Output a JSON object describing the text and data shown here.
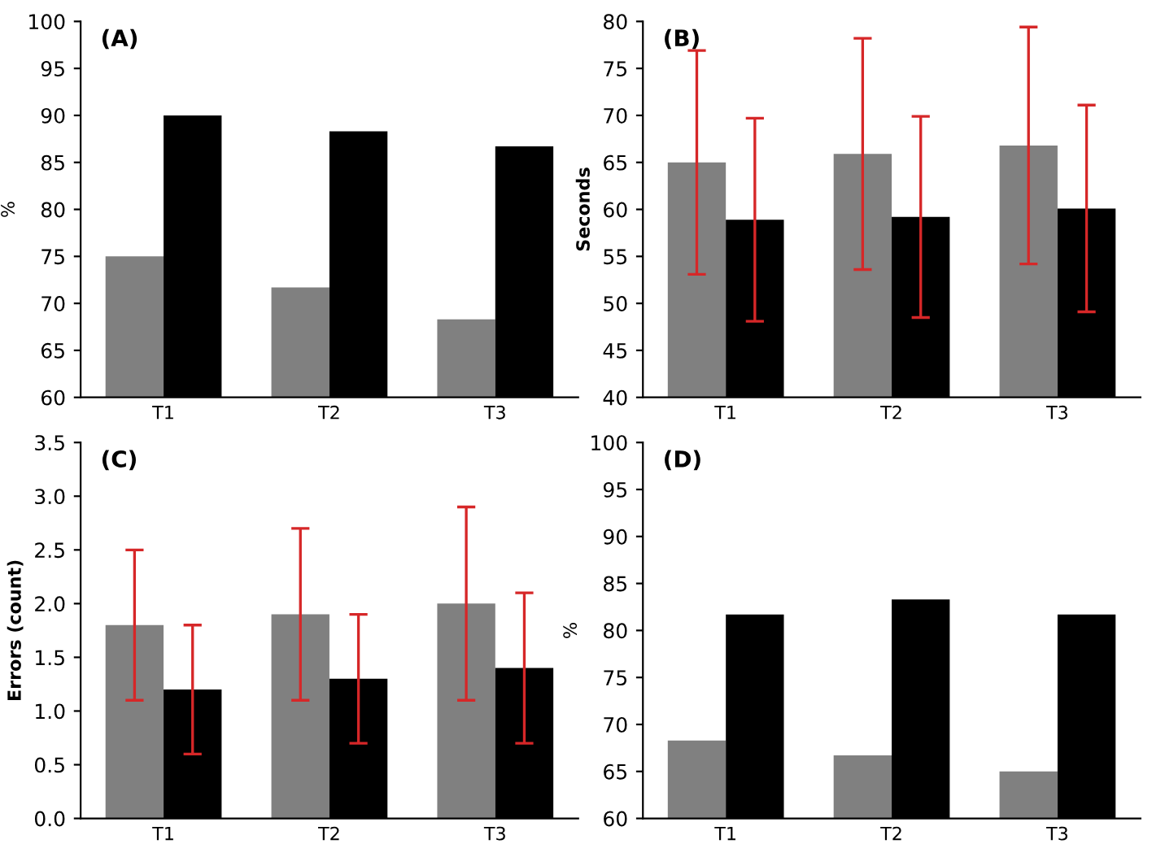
{
  "chart_data": [
    {
      "type": "bar",
      "title": "(A)",
      "ylabel": "%",
      "categories": [
        "T1",
        "T2",
        "T3"
      ],
      "ylim": [
        60,
        100
      ],
      "yticks": [
        60,
        65,
        70,
        75,
        80,
        85,
        90,
        95,
        100
      ],
      "grid": false,
      "legend": false,
      "series": [
        {
          "color": "#808080",
          "values": [
            75,
            71.7,
            68.3
          ]
        },
        {
          "color": "#000000",
          "values": [
            90,
            88.3,
            86.7
          ]
        }
      ]
    },
    {
      "type": "bar",
      "title": "(B)",
      "ylabel": "Seconds",
      "categories": [
        "T1",
        "T2",
        "T3"
      ],
      "ylim": [
        40,
        80
      ],
      "yticks": [
        40,
        45,
        50,
        55,
        60,
        65,
        70,
        75,
        80
      ],
      "grid": false,
      "legend": false,
      "series": [
        {
          "color": "#808080",
          "values": [
            65.0,
            65.9,
            66.8
          ],
          "errors": [
            11.9,
            12.3,
            12.6
          ]
        },
        {
          "color": "#000000",
          "values": [
            58.9,
            59.2,
            60.1
          ],
          "errors": [
            10.8,
            10.7,
            11.0
          ]
        }
      ]
    },
    {
      "type": "bar",
      "title": "(C)",
      "ylabel": "Errors (count)",
      "categories": [
        "T1",
        "T2",
        "T3"
      ],
      "ylim": [
        0,
        3.5
      ],
      "yticks": [
        {
          "value": 0,
          "label": "0.0"
        },
        0.5,
        {
          "value": 1,
          "label": "1.0"
        },
        1.5,
        {
          "value": 2,
          "label": "2.0"
        },
        2.5,
        {
          "value": 3,
          "label": "3.0"
        },
        3.5
      ],
      "grid": false,
      "legend": false,
      "series": [
        {
          "color": "#808080",
          "values": [
            1.8,
            1.9,
            2.0
          ],
          "errors": [
            0.7,
            0.8,
            0.9
          ]
        },
        {
          "color": "#000000",
          "values": [
            1.2,
            1.3,
            1.4
          ],
          "errors": [
            0.6,
            0.6,
            0.7
          ]
        }
      ]
    },
    {
      "type": "bar",
      "title": "(D)",
      "ylabel": "%",
      "categories": [
        "T1",
        "T2",
        "T3"
      ],
      "ylim": [
        60,
        100
      ],
      "yticks": [
        60,
        65,
        70,
        75,
        80,
        85,
        90,
        95,
        100
      ],
      "grid": false,
      "legend": false,
      "series": [
        {
          "color": "#808080",
          "values": [
            68.3,
            66.7,
            65.0
          ]
        },
        {
          "color": "#000000",
          "values": [
            81.7,
            83.3,
            81.7
          ]
        }
      ]
    }
  ]
}
